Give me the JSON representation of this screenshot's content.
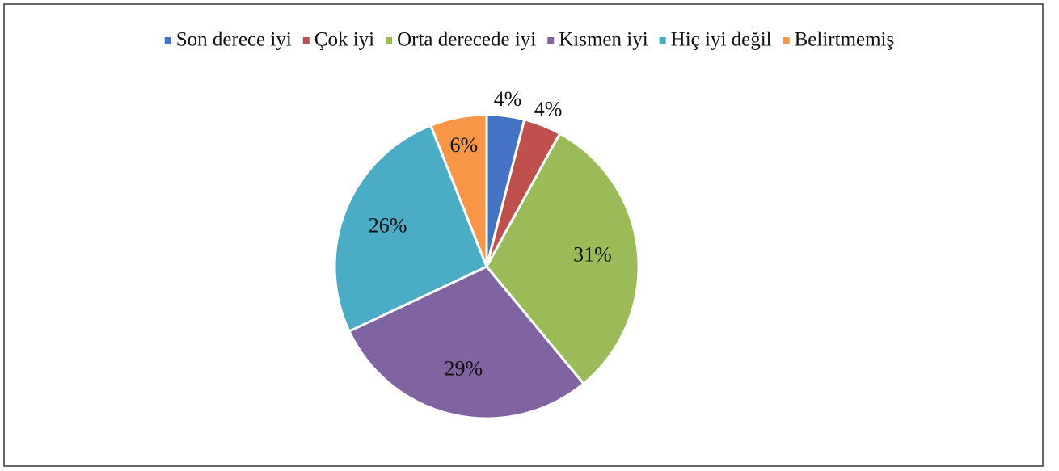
{
  "chart_data": {
    "type": "pie",
    "categories": [
      "Son derece iyi",
      "Çok iyi",
      "Orta derecede iyi",
      "Kısmen iyi",
      "Hiç iyi değil",
      "Belirtmemiş"
    ],
    "values": [
      4,
      4,
      31,
      29,
      26,
      6
    ],
    "value_labels": [
      "4%",
      "4%",
      "31%",
      "29%",
      "26%",
      "6%"
    ],
    "colors": [
      "#4472c4",
      "#c0504d",
      "#9bbb59",
      "#8064a2",
      "#4bacc6",
      "#f79646"
    ],
    "legend": "top"
  }
}
